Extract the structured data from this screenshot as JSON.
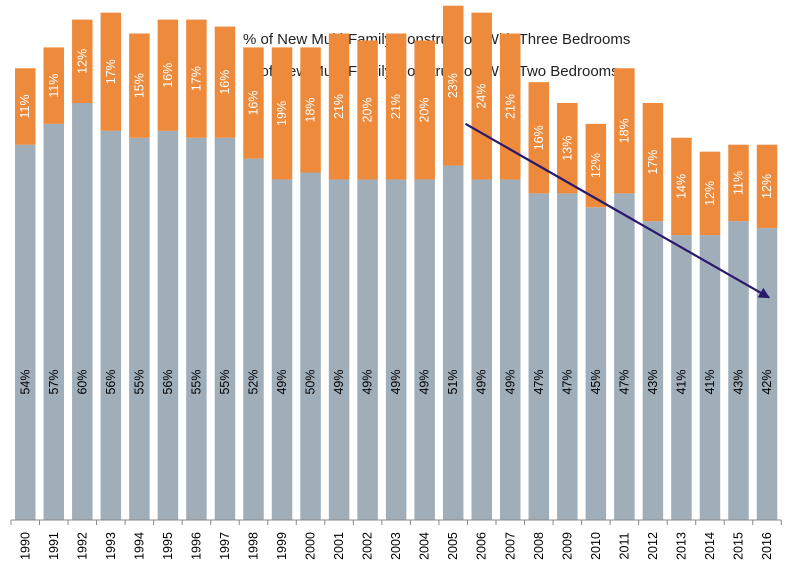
{
  "chart_data": {
    "type": "bar",
    "stacked": true,
    "title": "",
    "xlabel": "",
    "ylabel": "",
    "ylim": [
      0,
      75
    ],
    "grid": false,
    "legend_position": "top-center",
    "categories": [
      "1990",
      "1991",
      "1992",
      "1993",
      "1994",
      "1995",
      "1996",
      "1997",
      "1998",
      "1999",
      "2000",
      "2001",
      "2002",
      "2003",
      "2004",
      "2005",
      "2006",
      "2007",
      "2008",
      "2009",
      "2010",
      "2011",
      "2012",
      "2013",
      "2014",
      "2015",
      "2016"
    ],
    "series": [
      {
        "name": "% of New Multi-Family Construction With Two Bedrooms",
        "color": "#A0AEBA",
        "values": [
          54,
          57,
          60,
          56,
          55,
          56,
          55,
          55,
          52,
          49,
          50,
          49,
          49,
          49,
          49,
          51,
          49,
          49,
          47,
          47,
          45,
          47,
          43,
          41,
          41,
          43,
          42
        ],
        "labels": [
          "54%",
          "57%",
          "60%",
          "56%",
          "55%",
          "56%",
          "55%",
          "55%",
          "52%",
          "49%",
          "50%",
          "49%",
          "49%",
          "49%",
          "49%",
          "51%",
          "49%",
          "49%",
          "47%",
          "47%",
          "45%",
          "47%",
          "43%",
          "41%",
          "41%",
          "43%",
          "42%"
        ]
      },
      {
        "name": "% of New Multi-Family Construction With Three Bedrooms",
        "color": "#EE8A3C",
        "values": [
          11,
          11,
          12,
          17,
          15,
          16,
          17,
          16,
          16,
          19,
          18,
          21,
          20,
          21,
          20,
          23,
          24,
          21,
          16,
          13,
          12,
          18,
          17,
          14,
          12,
          11,
          12
        ],
        "labels": [
          "11%",
          "11%",
          "12%",
          "17%",
          "15%",
          "16%",
          "17%",
          "16%",
          "16%",
          "19%",
          "18%",
          "21%",
          "20%",
          "21%",
          "20%",
          "23%",
          "24%",
          "21%",
          "16%",
          "13%",
          "12%",
          "18%",
          "17%",
          "14%",
          "12%",
          "11%",
          "12%"
        ]
      }
    ],
    "annotations": [
      {
        "type": "trend-arrow",
        "from_category": "2005",
        "from_value": 57,
        "to_category": "2016",
        "to_value": 32,
        "color": "#2B1A6B"
      }
    ]
  }
}
